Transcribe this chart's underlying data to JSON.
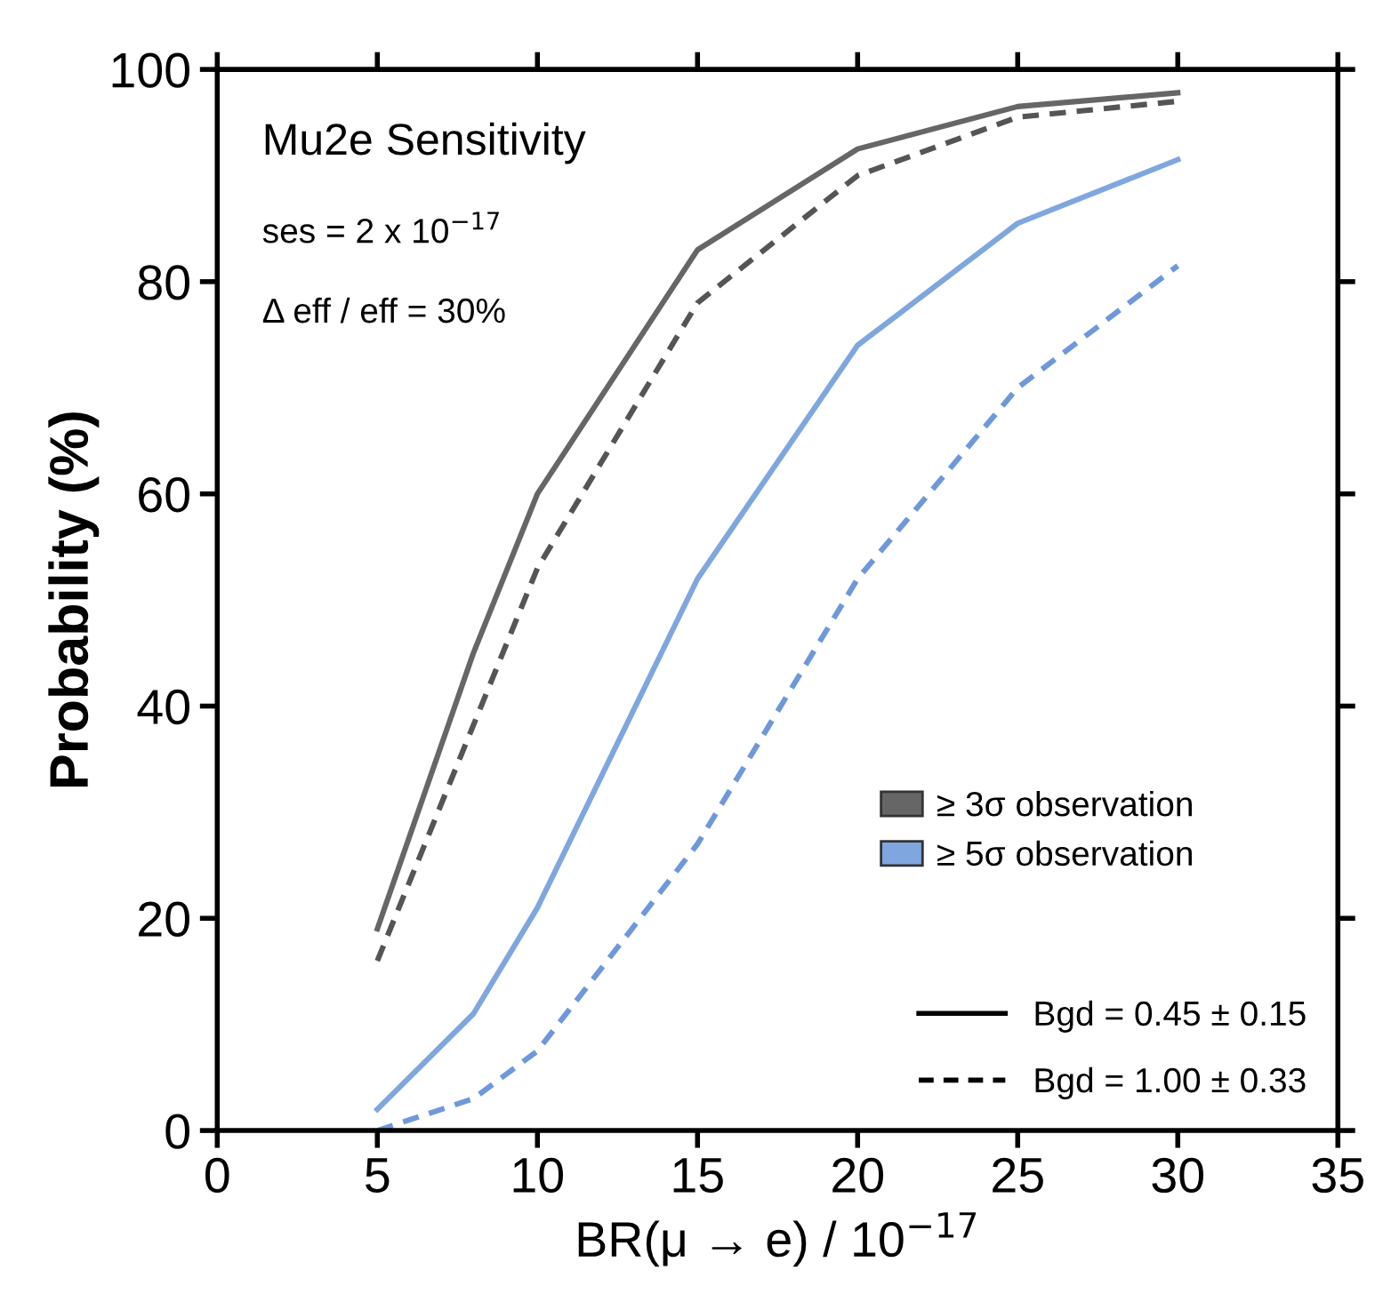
{
  "chart_data": {
    "type": "line",
    "title": "Mu2e Sensitivity",
    "xlabel": "BR(μ → e) / 10$^{−17}$",
    "ylabel": "Probability (%)",
    "xlim": [
      0,
      35
    ],
    "xticks": [
      0,
      5,
      10,
      15,
      20,
      25,
      30,
      35
    ],
    "ylim": [
      0,
      100
    ],
    "yticks": [
      0,
      20,
      40,
      60,
      80,
      100
    ],
    "grid": false,
    "legend": "bottom right",
    "marker": "none",
    "annotations": [
      "ses = 2 x 10$^{−17}$",
      "Δ eff / eff = 30%",
      "Bgd = 0.45 ± 0.15",
      "Bgd = 1.00 ± 0.33"
    ],
    "series": [
      {
        "name": "≥ 3σ observation",
        "color": "#666666",
        "line_style": "solid",
        "x": [
          5,
          8,
          10,
          15,
          20,
          25,
          30
        ],
        "values": [
          19,
          45,
          60,
          83,
          92.5,
          96.5,
          97.8
        ]
      },
      {
        "color": "#555555",
        "line_style": "dashed",
        "x": [
          5,
          10,
          15,
          20,
          25,
          30
        ],
        "values": [
          16,
          53,
          78,
          90,
          95.5,
          97
        ]
      },
      {
        "name": "≥ 5σ observation",
        "color": "#7fa6de",
        "line_style": "solid",
        "x": [
          5,
          8,
          10,
          15,
          20,
          25,
          30
        ],
        "values": [
          2,
          11,
          21,
          52,
          74,
          85.5,
          91.5
        ]
      },
      {
        "color": "#6f98da",
        "line_style": "dashed",
        "x": [
          5,
          8,
          10,
          15,
          20,
          25,
          30
        ],
        "values": [
          0,
          3,
          7.5,
          27,
          52,
          70,
          81.5
        ]
      }
    ]
  }
}
